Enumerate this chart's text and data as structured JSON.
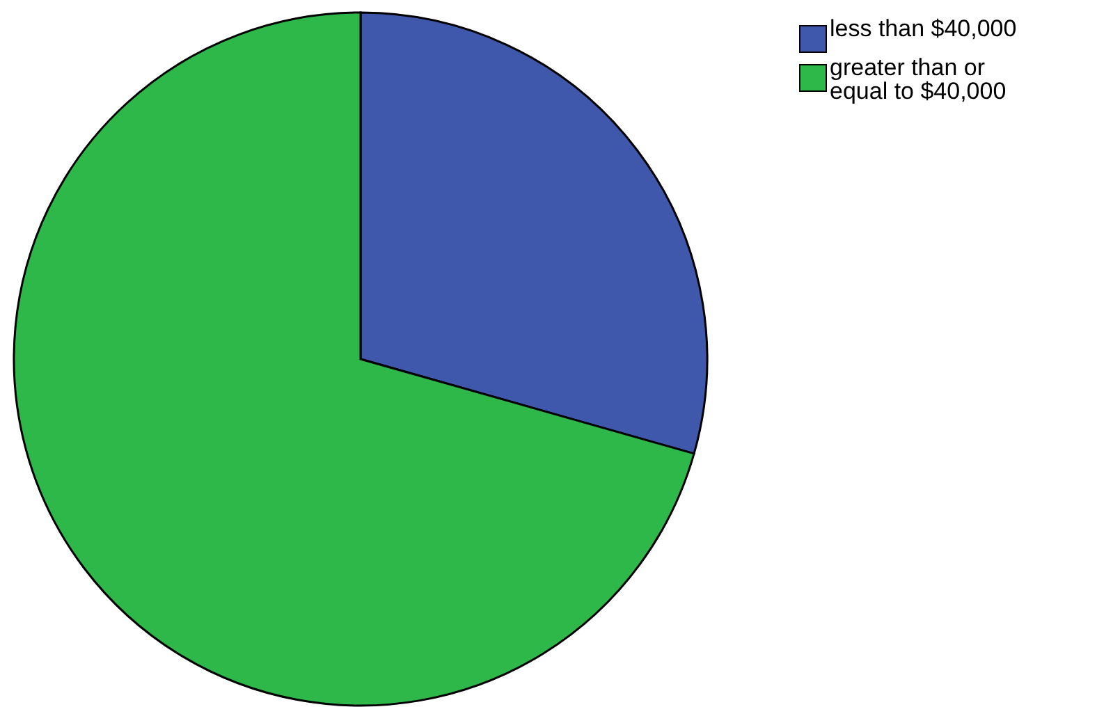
{
  "chart_data": {
    "type": "pie",
    "categories": [
      "less than $40,000",
      "greater than or equal to $40,000"
    ],
    "values": [
      29.4,
      70.6
    ],
    "colors": [
      "#3f58ab",
      "#2eb84a"
    ],
    "legend": "top right"
  }
}
